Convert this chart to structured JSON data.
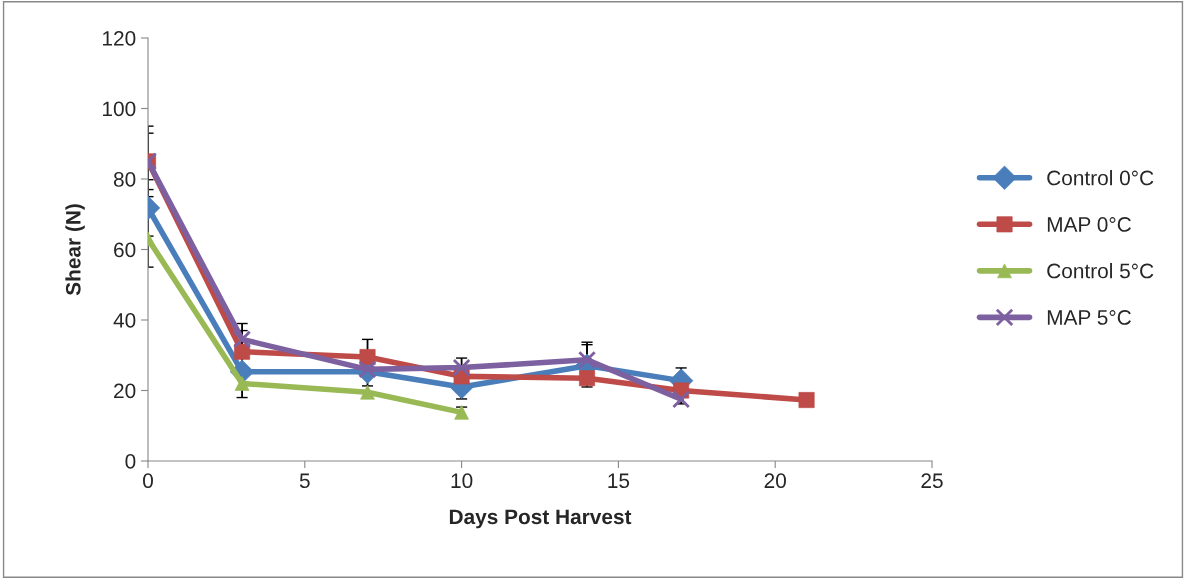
{
  "chart_data": {
    "type": "line",
    "xlabel": "Days Post Harvest",
    "ylabel": "Shear (N)",
    "xlim": [
      0,
      25
    ],
    "xticks": [
      0,
      5,
      10,
      15,
      20,
      25
    ],
    "ylim": [
      0,
      120
    ],
    "yticks": [
      0,
      20,
      40,
      60,
      80,
      100,
      120
    ],
    "grid": false,
    "legend": "right",
    "line_style": "solid",
    "series": [
      {
        "name": "Control 0°C",
        "color": "#4a7ebb",
        "marker": "diamond",
        "x": [
          0,
          3,
          7,
          10,
          14,
          17
        ],
        "values": [
          71.8,
          25.3,
          25.3,
          21,
          27,
          22.8
        ],
        "errors": [
          8,
          null,
          4,
          3.4,
          6,
          3.6
        ]
      },
      {
        "name": "MAP 0°C",
        "color": "#be4b48",
        "marker": "square",
        "x": [
          0,
          3,
          7,
          10,
          14,
          17,
          21
        ],
        "values": [
          85,
          31,
          29.5,
          24,
          23.5,
          20,
          17.3
        ],
        "errors": [
          10,
          6,
          5,
          null,
          null,
          null,
          null
        ]
      },
      {
        "name": "Control 5°C",
        "color": "#98b954",
        "marker": "triangle",
        "x": [
          0,
          3,
          7,
          10
        ],
        "values": [
          63,
          22,
          19.5,
          13.8
        ],
        "errors": [
          8,
          4,
          null,
          1.5
        ]
      },
      {
        "name": "MAP 5°C",
        "color": "#7d60a0",
        "marker": "cross",
        "x": [
          0,
          3,
          7,
          10,
          14,
          17
        ],
        "values": [
          85,
          34.5,
          26,
          26.5,
          28.7,
          17.5
        ],
        "errors": [
          8,
          4.5,
          null,
          2.7,
          5,
          1.3
        ]
      }
    ]
  }
}
